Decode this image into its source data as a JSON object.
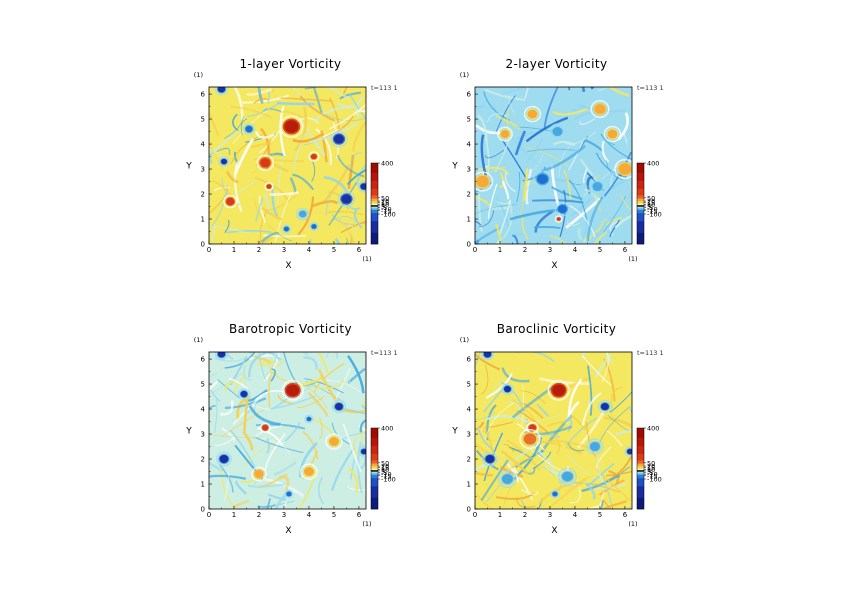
{
  "chart_data": [
    {
      "type": "heatmap",
      "title": "1-layer Vorticity",
      "xlabel": "X",
      "ylabel": "Y",
      "x_unit": "(1)",
      "y_unit": "(1)",
      "time_label": "t=113 1",
      "xlim": [
        0,
        6.283
      ],
      "ylim": [
        0,
        6.283
      ],
      "x_ticks": [
        "0",
        "1",
        "2",
        "3",
        "4",
        "5",
        "6"
      ],
      "y_ticks": [
        "0",
        "1",
        "2",
        "3",
        "4",
        "5",
        "6"
      ],
      "colorbar": {
        "ticks": [
          "400",
          "50",
          "20",
          "15",
          "10",
          "5",
          "-5",
          "-10",
          "-15",
          "-100"
        ],
        "values": [
          400,
          50,
          20,
          15,
          10,
          5,
          -5,
          -10,
          -15,
          -100
        ]
      },
      "field": {
        "background": "#f3e860",
        "blobs": [
          {
            "x": 3.3,
            "y": 4.7,
            "r": 0.28,
            "v": 400
          },
          {
            "x": 2.25,
            "y": 3.25,
            "r": 0.2,
            "v": 250
          },
          {
            "x": 0.85,
            "y": 1.7,
            "r": 0.16,
            "v": 250
          },
          {
            "x": 4.2,
            "y": 3.5,
            "r": 0.12,
            "v": 150
          },
          {
            "x": 2.4,
            "y": 2.3,
            "r": 0.1,
            "v": 120
          },
          {
            "x": 5.2,
            "y": 4.2,
            "r": 0.2,
            "v": -150
          },
          {
            "x": 5.5,
            "y": 1.8,
            "r": 0.2,
            "v": -150
          },
          {
            "x": 0.6,
            "y": 3.3,
            "r": 0.12,
            "v": -100
          },
          {
            "x": 1.6,
            "y": 4.6,
            "r": 0.14,
            "v": -80
          },
          {
            "x": 4.2,
            "y": 0.7,
            "r": 0.1,
            "v": -80
          },
          {
            "x": 0.5,
            "y": 6.2,
            "r": 0.15,
            "v": -100
          },
          {
            "x": 3.1,
            "y": 0.6,
            "r": 0.1,
            "v": -80
          },
          {
            "x": 3.75,
            "y": 1.2,
            "r": 0.15,
            "v": -30
          },
          {
            "x": 6.2,
            "y": 2.3,
            "r": 0.14,
            "v": -100
          }
        ]
      }
    },
    {
      "type": "heatmap",
      "title": "2-layer Vorticity",
      "xlabel": "X",
      "ylabel": "Y",
      "x_unit": "(1)",
      "y_unit": "(1)",
      "time_label": "t=113 1",
      "xlim": [
        0,
        6.283
      ],
      "ylim": [
        0,
        6.283
      ],
      "x_ticks": [
        "0",
        "1",
        "2",
        "3",
        "4",
        "5",
        "6"
      ],
      "y_ticks": [
        "0",
        "1",
        "2",
        "3",
        "4",
        "5",
        "6"
      ],
      "colorbar": {
        "ticks": [
          "400",
          "50",
          "20",
          "15",
          "10",
          "5",
          "-5",
          "-10",
          "-15",
          "-100"
        ],
        "values": [
          400,
          50,
          20,
          15,
          10,
          5,
          -5,
          -10,
          -15,
          -100
        ]
      },
      "field": {
        "background": "#9fdcf0",
        "blobs": [
          {
            "x": 2.7,
            "y": 2.6,
            "r": 0.22,
            "v": -60
          },
          {
            "x": 3.5,
            "y": 1.4,
            "r": 0.18,
            "v": -60
          },
          {
            "x": 0.3,
            "y": 2.5,
            "r": 0.25,
            "v": 25
          },
          {
            "x": 3.35,
            "y": 1.0,
            "r": 0.08,
            "v": 150
          },
          {
            "x": 5.0,
            "y": 5.4,
            "r": 0.22,
            "v": 20
          },
          {
            "x": 5.5,
            "y": 4.4,
            "r": 0.2,
            "v": 18
          },
          {
            "x": 2.3,
            "y": 5.2,
            "r": 0.2,
            "v": 18
          },
          {
            "x": 3.3,
            "y": 4.5,
            "r": 0.2,
            "v": -20
          },
          {
            "x": 6.0,
            "y": 3.0,
            "r": 0.25,
            "v": 20
          },
          {
            "x": 4.9,
            "y": 2.3,
            "r": 0.2,
            "v": -15
          },
          {
            "x": 1.2,
            "y": 4.4,
            "r": 0.18,
            "v": 15
          }
        ]
      }
    },
    {
      "type": "heatmap",
      "title": "Barotropic Vorticity",
      "xlabel": "X",
      "ylabel": "Y",
      "x_unit": "(1)",
      "y_unit": "(1)",
      "time_label": "t=113 1",
      "xlim": [
        0,
        6.283
      ],
      "ylim": [
        0,
        6.283
      ],
      "x_ticks": [
        "0",
        "1",
        "2",
        "3",
        "4",
        "5",
        "6"
      ],
      "y_ticks": [
        "0",
        "1",
        "2",
        "3",
        "4",
        "5",
        "6"
      ],
      "colorbar": {
        "ticks": [
          "400",
          "50",
          "20",
          "15",
          "10",
          "5",
          "-5",
          "-10",
          "-15",
          "-100"
        ],
        "values": [
          400,
          50,
          20,
          15,
          10,
          5,
          -5,
          -10,
          -15,
          -100
        ]
      },
      "field": {
        "background": "#cdeee2",
        "blobs": [
          {
            "x": 3.35,
            "y": 4.75,
            "r": 0.26,
            "v": 400
          },
          {
            "x": 2.25,
            "y": 3.25,
            "r": 0.12,
            "v": 200
          },
          {
            "x": 1.4,
            "y": 4.6,
            "r": 0.14,
            "v": -100
          },
          {
            "x": 0.5,
            "y": 6.2,
            "r": 0.15,
            "v": -100
          },
          {
            "x": 5.2,
            "y": 4.1,
            "r": 0.16,
            "v": -100
          },
          {
            "x": 0.6,
            "y": 2.0,
            "r": 0.18,
            "v": -100
          },
          {
            "x": 2.0,
            "y": 1.4,
            "r": 0.18,
            "v": 20
          },
          {
            "x": 4.0,
            "y": 1.5,
            "r": 0.2,
            "v": 18
          },
          {
            "x": 5.0,
            "y": 2.7,
            "r": 0.2,
            "v": 18
          },
          {
            "x": 4.0,
            "y": 3.6,
            "r": 0.1,
            "v": -40
          },
          {
            "x": 3.2,
            "y": 0.6,
            "r": 0.1,
            "v": -60
          },
          {
            "x": 6.2,
            "y": 2.3,
            "r": 0.12,
            "v": -100
          }
        ]
      }
    },
    {
      "type": "heatmap",
      "title": "Baroclinic Vorticity",
      "xlabel": "X",
      "ylabel": "Y",
      "x_unit": "(1)",
      "y_unit": "(1)",
      "time_label": "t=113 1",
      "xlim": [
        0,
        6.283
      ],
      "ylim": [
        0,
        6.283
      ],
      "x_ticks": [
        "0",
        "1",
        "2",
        "3",
        "4",
        "5",
        "6"
      ],
      "y_ticks": [
        "0",
        "1",
        "2",
        "3",
        "4",
        "5",
        "6"
      ],
      "colorbar": {
        "ticks": [
          "400",
          "50",
          "20",
          "15",
          "10",
          "5",
          "-5",
          "-10",
          "-15",
          "-100"
        ],
        "values": [
          400,
          50,
          20,
          15,
          10,
          5,
          -5,
          -10,
          -15,
          -100
        ]
      },
      "field": {
        "background": "#f3e860",
        "blobs": [
          {
            "x": 3.35,
            "y": 4.75,
            "r": 0.26,
            "v": 400
          },
          {
            "x": 2.3,
            "y": 3.25,
            "r": 0.14,
            "v": 250
          },
          {
            "x": 2.2,
            "y": 2.8,
            "r": 0.25,
            "v": 50
          },
          {
            "x": 1.3,
            "y": 4.8,
            "r": 0.14,
            "v": -100
          },
          {
            "x": 0.5,
            "y": 6.2,
            "r": 0.15,
            "v": -100
          },
          {
            "x": 5.2,
            "y": 4.1,
            "r": 0.16,
            "v": -100
          },
          {
            "x": 0.6,
            "y": 2.0,
            "r": 0.18,
            "v": -100
          },
          {
            "x": 3.7,
            "y": 1.3,
            "r": 0.22,
            "v": -20
          },
          {
            "x": 4.8,
            "y": 2.5,
            "r": 0.2,
            "v": -15
          },
          {
            "x": 1.3,
            "y": 1.2,
            "r": 0.22,
            "v": -15
          },
          {
            "x": 3.2,
            "y": 0.6,
            "r": 0.1,
            "v": -80
          },
          {
            "x": 6.2,
            "y": 2.3,
            "r": 0.12,
            "v": -100
          }
        ]
      }
    }
  ]
}
